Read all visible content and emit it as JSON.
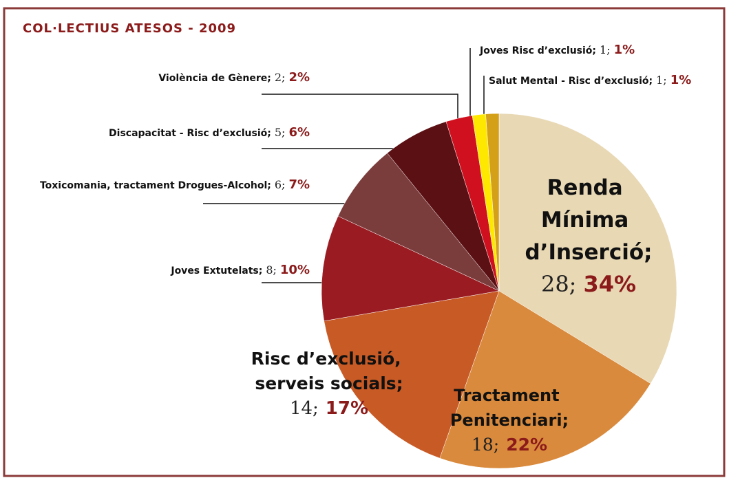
{
  "chart_data": {
    "type": "pie",
    "title": "COL·LECTIUS ATESOS - 2009",
    "categories": [
      "Renda Mínima d’Inserció;",
      "Tractament Penitenciari;",
      "Risc d’exclusió, serveis socials;",
      "Joves Extutelats;",
      "Toxicomania, tractament Drogues-Alcohol;",
      "Discapacitat - Risc d’exclusió;",
      "Violència de Gènere;",
      "Joves Risc d’exclusió;",
      "Salut Mental - Risc d’exclusió;"
    ],
    "values": [
      28,
      18,
      14,
      8,
      6,
      5,
      2,
      1,
      1
    ],
    "value_labels": [
      "28;",
      "18;",
      "14;",
      "8;",
      "6;",
      "5;",
      "2;",
      "1;",
      "1;"
    ],
    "percent_labels": [
      "34%",
      "22%",
      "17%",
      "10%",
      "7%",
      "6%",
      "2%",
      "1%",
      "1%"
    ],
    "colors": [
      "#e8d8b4",
      "#d98a3d",
      "#c85a25",
      "#9a1c22",
      "#7b3c3c",
      "#5b1014",
      "#d0101e",
      "#ffe800",
      "#d4a017"
    ]
  }
}
